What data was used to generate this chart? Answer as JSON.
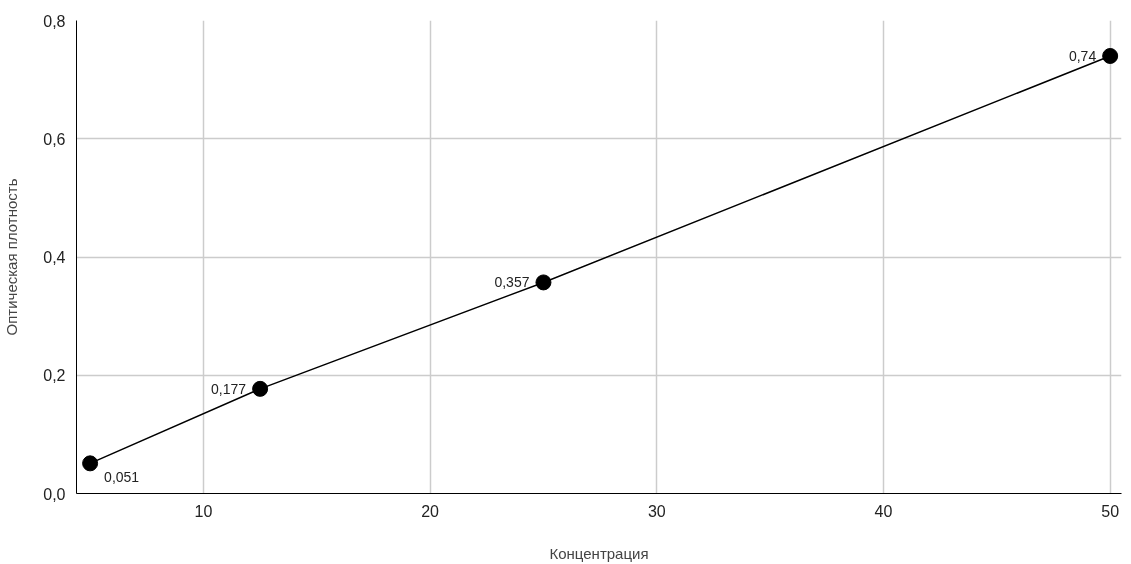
{
  "chart_data": {
    "type": "line",
    "xlabel": "Концентрация",
    "ylabel": "Оптическая плотность",
    "x": [
      5,
      12.5,
      25,
      50
    ],
    "series": [
      {
        "color": "#000000",
        "values": [
          0.051,
          0.177,
          0.357,
          0.74
        ],
        "value_labels": [
          "0,051",
          "0,177",
          "0,357",
          "0,74"
        ]
      }
    ],
    "xlim": [
      4.4,
      50.5
    ],
    "ylim": [
      0,
      0.8
    ],
    "xticks": [
      10,
      20,
      30,
      40,
      50
    ],
    "yticks": [
      {
        "value": 0,
        "label": "0,0"
      },
      {
        "value": 0.2,
        "label": "0,2"
      },
      {
        "value": 0.4,
        "label": "0,4"
      },
      {
        "value": 0.6,
        "label": "0,6"
      },
      {
        "value": 0.8,
        "label": "0,8"
      }
    ],
    "grid": true,
    "marker": "circle",
    "line_style": "solid"
  }
}
